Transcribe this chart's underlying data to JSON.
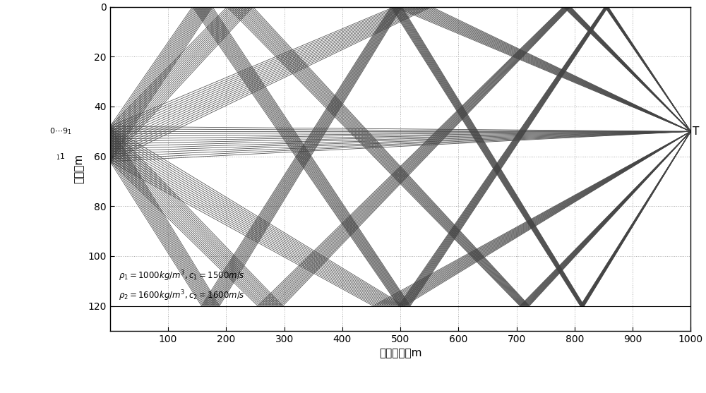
{
  "title": "",
  "xlabel": "水平距离／m",
  "ylabel": "深度／m",
  "xlim": [
    0,
    1000
  ],
  "ylim": [
    0,
    130
  ],
  "xticks": [
    100,
    200,
    300,
    400,
    500,
    600,
    700,
    800,
    900,
    1000
  ],
  "yticks": [
    0,
    20,
    40,
    60,
    80,
    100,
    120
  ],
  "target_x": 1000,
  "target_y": 50,
  "target_label": "T",
  "array_x": 0,
  "depth_surface": 0,
  "depth_bottom": 120,
  "element_depths": [
    48,
    49,
    50,
    51,
    52,
    53,
    54,
    55,
    56,
    57,
    58,
    59,
    60,
    61,
    62
  ],
  "annotation1": "$\\rho_1=1000kg/m^3,c_1=1500m/s$",
  "annotation2": "$\\rho_2=1600kg/m^3,c_2=1600m/s$",
  "line_color": "#444444",
  "bg_color": "#ffffff",
  "linewidth": 0.6,
  "figsize": [
    10.0,
    5.57
  ],
  "dpi": 100
}
